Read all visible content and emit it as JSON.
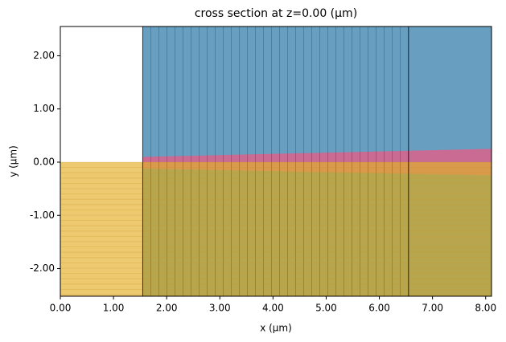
{
  "chart_data": {
    "type": "structure",
    "title": "cross section at z=0.00 (μm)",
    "x_label": "x (μm)",
    "y_label": "y (μm)",
    "xlim": [
      0,
      8.11
    ],
    "ylim": [
      -2.52,
      2.55
    ],
    "xticks": [
      {
        "value": 0,
        "label": "0.00"
      },
      {
        "value": 1,
        "label": "1.00"
      },
      {
        "value": 2,
        "label": "2.00"
      },
      {
        "value": 3,
        "label": "3.00"
      },
      {
        "value": 4,
        "label": "4.00"
      },
      {
        "value": 5,
        "label": "5.00"
      },
      {
        "value": 6,
        "label": "6.00"
      },
      {
        "value": 7,
        "label": "7.00"
      },
      {
        "value": 8,
        "label": "8.00"
      }
    ],
    "yticks": [
      {
        "value": -2,
        "label": "-2.00"
      },
      {
        "value": -1,
        "label": "-1.00"
      },
      {
        "value": 0,
        "label": "0.00"
      },
      {
        "value": 1,
        "label": "1.00"
      },
      {
        "value": 2,
        "label": "2.00"
      }
    ],
    "polygons": [
      {
        "color": "#edc96f",
        "points": [
          [
            0,
            -2.52
          ],
          [
            1.55,
            -2.52
          ],
          [
            1.55,
            0
          ],
          [
            0,
            0
          ]
        ]
      },
      {
        "color": "#689fc1",
        "points": [
          [
            1.55,
            0
          ],
          [
            8.11,
            0
          ],
          [
            8.11,
            2.55
          ],
          [
            1.55,
            2.55
          ]
        ]
      },
      {
        "color": "#b8a64e",
        "points": [
          [
            1.55,
            -2.52
          ],
          [
            8.11,
            -2.52
          ],
          [
            8.11,
            0
          ],
          [
            1.55,
            0
          ]
        ]
      },
      {
        "color": "#c96b92",
        "points": [
          [
            1.55,
            0
          ],
          [
            1.55,
            0.1
          ],
          [
            8.11,
            0.25
          ],
          [
            8.11,
            0
          ]
        ]
      },
      {
        "color": "#d99a4c",
        "points": [
          [
            1.55,
            0
          ],
          [
            8.11,
            0
          ],
          [
            8.11,
            -0.25
          ],
          [
            1.55,
            -0.12
          ]
        ]
      }
    ],
    "edges_x": [
      1.55,
      6.55
    ]
  }
}
